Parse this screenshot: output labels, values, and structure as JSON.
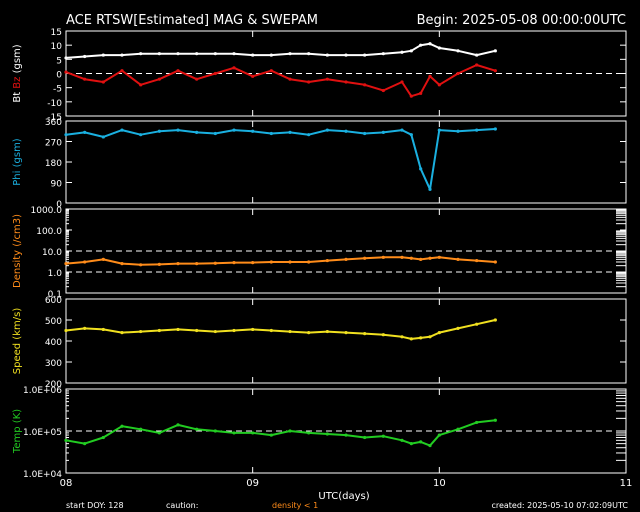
{
  "header": {
    "title": "ACE RTSW[Estimated] MAG & SWEPAM",
    "begin": "Begin: 2025-05-08 00:00:00UTC"
  },
  "footer": {
    "start_doy": "start DOY: 128",
    "caution": "caution:",
    "density_note": "density < 1",
    "created": "created: 2025-05-10 07:02:09UTC"
  },
  "colors": {
    "background": "#000000",
    "axes": "#ffffff",
    "bt": "#ffffff",
    "bz": "#e01010",
    "phi": "#1ab0e0",
    "density": "#ff8c1a",
    "speed": "#f0e020",
    "temp": "#22cc22"
  },
  "chart_data": [
    {
      "type": "scatter",
      "ylabel_parts": [
        {
          "text": "Bt",
          "color": "#ffffff"
        },
        {
          "text": "Bz",
          "color": "#e01010"
        },
        {
          "text": "(gsm)",
          "color": "#ffffff"
        }
      ],
      "ylim": [
        -15,
        15
      ],
      "yticks": [
        15,
        10,
        5,
        0,
        -5,
        -10,
        -15
      ],
      "yticklabels": [
        "15",
        "10",
        "5",
        "0",
        "-5",
        "-10",
        "-15"
      ],
      "reference_lines": [
        0
      ],
      "x": [
        8.0,
        8.1,
        8.2,
        8.3,
        8.4,
        8.5,
        8.6,
        8.7,
        8.8,
        8.9,
        9.0,
        9.1,
        9.2,
        9.3,
        9.4,
        9.5,
        9.6,
        9.7,
        9.8,
        9.85,
        9.9,
        9.95,
        10.0,
        10.1,
        10.2,
        10.3
      ],
      "series": [
        {
          "name": "Bt",
          "color": "#ffffff",
          "values": [
            5.5,
            6,
            6.5,
            6.5,
            7,
            7,
            7,
            7,
            7,
            7,
            6.5,
            6.5,
            7,
            7,
            6.5,
            6.5,
            6.5,
            7,
            7.5,
            8,
            10,
            10.5,
            9,
            8,
            6.5,
            8
          ]
        },
        {
          "name": "Bz",
          "color": "#e01010",
          "values": [
            0.5,
            -2,
            -3,
            1,
            -4,
            -2,
            1,
            -2,
            0,
            2,
            -1,
            1,
            -2,
            -3,
            -2,
            -3,
            -4,
            -6,
            -3,
            -8,
            -7,
            -1,
            -4,
            0,
            3,
            1
          ]
        }
      ]
    },
    {
      "type": "scatter",
      "ylabel": "Phi (gsm)",
      "ylim": [
        0,
        360
      ],
      "yticks": [
        360,
        270,
        180,
        90,
        0
      ],
      "yticklabels": [
        "360",
        "270",
        "180",
        "90",
        "0"
      ],
      "x": [
        8.0,
        8.1,
        8.2,
        8.3,
        8.4,
        8.5,
        8.6,
        8.7,
        8.8,
        8.9,
        9.0,
        9.1,
        9.2,
        9.3,
        9.4,
        9.5,
        9.6,
        9.7,
        9.8,
        9.85,
        9.9,
        9.95,
        10.0,
        10.1,
        10.2,
        10.3
      ],
      "series": [
        {
          "name": "Phi",
          "color": "#1ab0e0",
          "values": [
            300,
            310,
            290,
            320,
            300,
            315,
            320,
            310,
            305,
            320,
            315,
            305,
            310,
            300,
            320,
            315,
            305,
            310,
            320,
            300,
            150,
            60,
            320,
            315,
            320,
            325
          ]
        }
      ]
    },
    {
      "type": "scatter",
      "ylabel": "Density (/cm3)",
      "yscale": "log",
      "ylim": [
        0.1,
        1000
      ],
      "yticks": [
        1000,
        100,
        10,
        1,
        0.1
      ],
      "yticklabels": [
        "1000.0",
        "100.0",
        "10.0",
        "1.0",
        "0.1"
      ],
      "reference_lines": [
        10,
        1
      ],
      "x": [
        8.0,
        8.1,
        8.2,
        8.3,
        8.4,
        8.5,
        8.6,
        8.7,
        8.8,
        8.9,
        9.0,
        9.1,
        9.2,
        9.3,
        9.4,
        9.5,
        9.6,
        9.7,
        9.8,
        9.85,
        9.9,
        9.95,
        10.0,
        10.1,
        10.2,
        10.3
      ],
      "series": [
        {
          "name": "Density",
          "color": "#ff8c1a",
          "values": [
            2.5,
            3,
            4,
            2.5,
            2.2,
            2.3,
            2.5,
            2.5,
            2.6,
            2.8,
            2.8,
            3,
            3,
            3,
            3.5,
            4,
            4.5,
            5,
            5,
            4.5,
            4,
            4.5,
            5,
            4,
            3.5,
            3
          ]
        }
      ]
    },
    {
      "type": "scatter",
      "ylabel": "Speed (km/s)",
      "ylim": [
        200,
        600
      ],
      "yticks": [
        600,
        500,
        400,
        300,
        200
      ],
      "yticklabels": [
        "600",
        "500",
        "400",
        "300",
        "200"
      ],
      "x": [
        8.0,
        8.1,
        8.2,
        8.3,
        8.4,
        8.5,
        8.6,
        8.7,
        8.8,
        8.9,
        9.0,
        9.1,
        9.2,
        9.3,
        9.4,
        9.5,
        9.6,
        9.7,
        9.8,
        9.85,
        9.9,
        9.95,
        10.0,
        10.1,
        10.2,
        10.3
      ],
      "series": [
        {
          "name": "Speed",
          "color": "#f0e020",
          "values": [
            450,
            460,
            455,
            440,
            445,
            450,
            455,
            450,
            445,
            450,
            455,
            450,
            445,
            440,
            445,
            440,
            435,
            430,
            420,
            410,
            415,
            420,
            440,
            460,
            480,
            500
          ]
        }
      ]
    },
    {
      "type": "scatter",
      "ylabel": "Temp (K)",
      "yscale": "log",
      "ylim": [
        10000,
        1000000
      ],
      "yticks": [
        1000000,
        100000,
        10000
      ],
      "yticklabels": [
        "1.0E+06",
        "1.0E+05",
        "1.0E+04"
      ],
      "reference_lines": [
        100000
      ],
      "x": [
        8.0,
        8.1,
        8.2,
        8.3,
        8.4,
        8.5,
        8.6,
        8.7,
        8.8,
        8.9,
        9.0,
        9.1,
        9.2,
        9.3,
        9.4,
        9.5,
        9.6,
        9.7,
        9.8,
        9.85,
        9.9,
        9.95,
        10.0,
        10.1,
        10.2,
        10.3
      ],
      "series": [
        {
          "name": "Temp",
          "color": "#22cc22",
          "values": [
            60000,
            50000,
            70000,
            130000,
            110000,
            90000,
            140000,
            110000,
            100000,
            90000,
            90000,
            80000,
            100000,
            90000,
            85000,
            80000,
            70000,
            75000,
            60000,
            50000,
            55000,
            45000,
            80000,
            110000,
            160000,
            180000
          ]
        }
      ]
    }
  ],
  "x_axis": {
    "xlabel": "UTC(days)",
    "xlim": [
      8,
      11
    ],
    "xticks": [
      8,
      9,
      10,
      11
    ],
    "xticklabels": [
      "08",
      "09",
      "10",
      "11"
    ]
  }
}
